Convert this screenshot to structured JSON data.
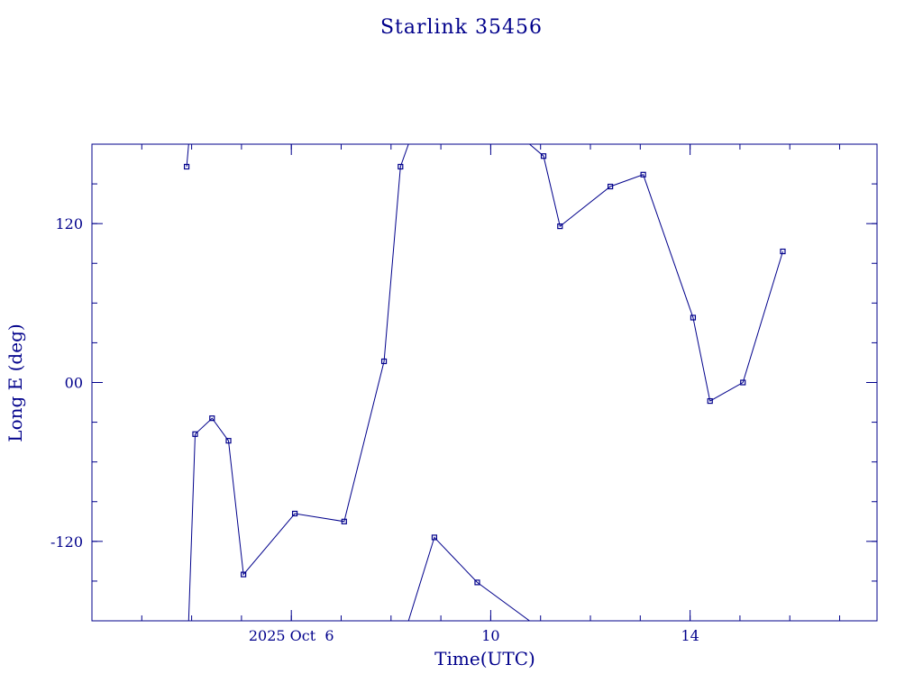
{
  "chart_data": {
    "type": "line",
    "title": "Starlink 35456",
    "xlabel": "Time(UTC)",
    "ylabel": "Long E (deg)",
    "x_ticks": [
      {
        "x": 6,
        "label": "2025 Oct  6"
      },
      {
        "x": 10,
        "label": "10"
      },
      {
        "x": 14,
        "label": "14"
      }
    ],
    "y_ticks": [
      {
        "y": 120,
        "label": "120"
      },
      {
        "y": 0,
        "label": "00"
      },
      {
        "y": -120,
        "label": "-120"
      }
    ],
    "xlim": [
      2.0,
      17.75
    ],
    "ylim": [
      -180,
      180
    ],
    "grid": false,
    "color": "#00008b",
    "series": [
      {
        "values": [
          {
            "x": 3.9,
            "y": 163
          },
          {
            "x": 3.94,
            "y": 180
          }
        ]
      },
      {
        "values": [
          {
            "x": 3.94,
            "y": -180
          },
          {
            "x": 4.07,
            "y": -39
          },
          {
            "x": 4.41,
            "y": -27
          },
          {
            "x": 4.74,
            "y": -44
          },
          {
            "x": 5.04,
            "y": -145
          },
          {
            "x": 6.07,
            "y": -99
          },
          {
            "x": 7.06,
            "y": -105
          },
          {
            "x": 7.86,
            "y": 16
          },
          {
            "x": 8.19,
            "y": 163
          },
          {
            "x": 8.35,
            "y": 180
          }
        ]
      },
      {
        "values": [
          {
            "x": 8.35,
            "y": -180
          },
          {
            "x": 8.87,
            "y": -117
          },
          {
            "x": 9.73,
            "y": -151
          },
          {
            "x": 10.78,
            "y": -180
          }
        ]
      },
      {
        "values": [
          {
            "x": 10.78,
            "y": 180
          },
          {
            "x": 11.06,
            "y": 171
          },
          {
            "x": 11.39,
            "y": 118
          },
          {
            "x": 12.4,
            "y": 148
          },
          {
            "x": 13.06,
            "y": 157
          },
          {
            "x": 14.06,
            "y": 49
          },
          {
            "x": 14.4,
            "y": -14
          },
          {
            "x": 15.06,
            "y": 0
          },
          {
            "x": 15.86,
            "y": 99
          }
        ]
      }
    ]
  }
}
